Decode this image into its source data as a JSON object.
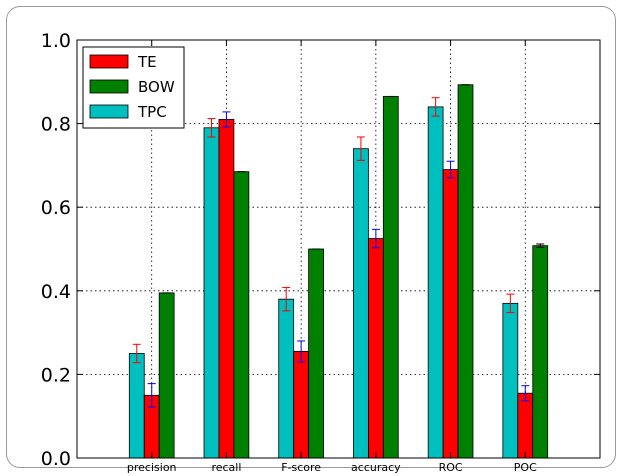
{
  "chart_data": {
    "type": "bar",
    "title": "",
    "xlabel": "",
    "ylabel": "",
    "ylim": [
      0.0,
      1.0
    ],
    "yticks": [
      "0.0",
      "0.2",
      "0.4",
      "0.6",
      "0.8",
      "1.0"
    ],
    "categories": [
      "precision",
      "recall",
      "F-score",
      "accuracy",
      "ROC",
      "POC"
    ],
    "grid": true,
    "legend_position": "top-left",
    "legend_order": [
      "TE",
      "BOW",
      "TPC"
    ],
    "series": [
      {
        "name": "TPC",
        "color": "#00bfbf",
        "error_color": "#ff0000",
        "values": [
          0.25,
          0.79,
          0.38,
          0.74,
          0.84,
          0.37
        ],
        "errors": [
          0.022,
          0.022,
          0.028,
          0.028,
          0.022,
          0.022
        ]
      },
      {
        "name": "TE",
        "color": "#ff0000",
        "error_color": "#0000ff",
        "values": [
          0.15,
          0.81,
          0.255,
          0.525,
          0.69,
          0.155
        ],
        "errors": [
          0.028,
          0.018,
          0.025,
          0.022,
          0.02,
          0.018
        ]
      },
      {
        "name": "BOW",
        "color": "#008000",
        "error_color": "#000000",
        "values": [
          0.395,
          0.685,
          0.5,
          0.865,
          0.893,
          0.508
        ],
        "errors": [
          0.0,
          0.0,
          0.0,
          0.0,
          0.0,
          0.004
        ]
      }
    ]
  }
}
